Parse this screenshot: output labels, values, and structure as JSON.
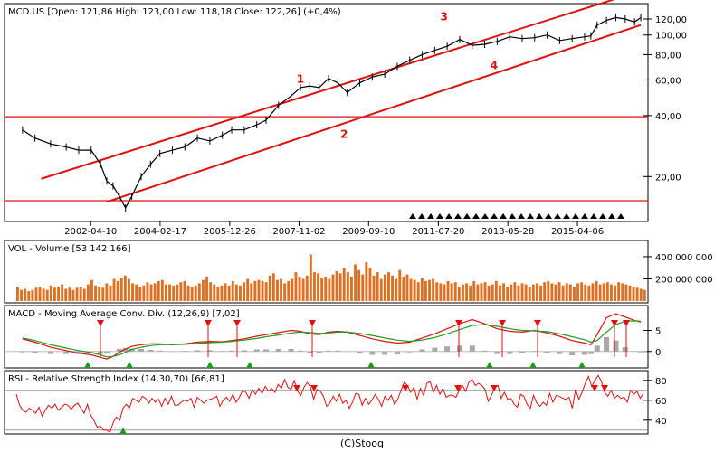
{
  "footer": "(C)Stooq",
  "colors": {
    "price": "#000000",
    "channel": "#dd1111",
    "volume": "#e07020",
    "macd": "#dd1111",
    "signal": "#229922",
    "hist": "#a8a8a8",
    "rsi": "#dd1111",
    "grid": "#999999"
  },
  "chart_data": [
    {
      "type": "line",
      "title": "MCD.US [Open: 121,86  High: 123,00  Low: 118,18  Close: 122,26] (+0,4%)",
      "x_ticks": [
        "2002-04-10",
        "2004-02-17",
        "2005-12-26",
        "2007-11-02",
        "2009-09-10",
        "2011-07-20",
        "2013-05-28",
        "2015-04-06"
      ],
      "y_scale": "log",
      "y_ticks": [
        "20,00",
        "40,00",
        "60,00",
        "80,00",
        "100,00",
        "120,00"
      ],
      "y_tick_values": [
        20,
        40,
        60,
        80,
        100,
        120
      ],
      "ylim": [
        14,
        140
      ],
      "x": [
        "2000-06",
        "2000-10",
        "2001-03",
        "2001-08",
        "2001-12",
        "2002-04",
        "2002-07",
        "2002-09",
        "2002-11",
        "2003-01",
        "2003-03",
        "2003-05",
        "2003-08",
        "2003-11",
        "2004-02",
        "2004-06",
        "2004-10",
        "2005-02",
        "2005-06",
        "2005-10",
        "2006-01",
        "2006-05",
        "2006-09",
        "2006-12",
        "2007-04",
        "2007-08",
        "2007-11",
        "2008-02",
        "2008-05",
        "2008-08",
        "2008-11",
        "2009-02",
        "2009-06",
        "2009-10",
        "2010-02",
        "2010-06",
        "2010-10",
        "2011-02",
        "2011-06",
        "2011-10",
        "2012-02",
        "2012-06",
        "2012-10",
        "2013-02",
        "2013-06",
        "2013-10",
        "2014-02",
        "2014-06",
        "2014-10",
        "2015-02",
        "2015-06",
        "2015-08",
        "2015-10",
        "2016-01",
        "2016-04",
        "2016-07",
        "2016-10",
        "2016-12"
      ],
      "close": [
        34,
        31,
        29,
        28,
        27,
        27,
        23,
        19,
        18,
        16,
        14,
        16,
        20,
        23,
        26,
        27,
        28,
        31,
        30,
        32,
        34,
        34,
        36,
        38,
        45,
        50,
        55,
        56,
        55,
        61,
        58,
        52,
        58,
        62,
        64,
        70,
        75,
        80,
        84,
        88,
        95,
        89,
        90,
        93,
        98,
        96,
        97,
        100,
        94,
        96,
        98,
        99,
        112,
        118,
        122,
        120,
        116,
        122
      ],
      "annotations": [
        "1",
        "2",
        "3",
        "4"
      ],
      "horizontal_lines": [
        39.5,
        15.2
      ],
      "channel_lines": [
        {
          "from": [
            "2000-12",
            19.5
          ],
          "to": [
            "2016-12",
            165
          ]
        },
        {
          "from": [
            "2002-09",
            15
          ],
          "to": [
            "2016-12",
            112
          ]
        }
      ]
    },
    {
      "type": "bar",
      "title": "VOL - Volume [53 142 166]",
      "y_ticks": [
        "200 000 000",
        "400 000 000"
      ],
      "y_tick_values": [
        200000000,
        400000000
      ],
      "ylim": [
        0,
        530000000
      ],
      "values": [
        130,
        100,
        110,
        90,
        100,
        120,
        130,
        110,
        100,
        140,
        120,
        130,
        150,
        110,
        120,
        100,
        120,
        130,
        110,
        150,
        190,
        140,
        130,
        120,
        160,
        140,
        200,
        180,
        210,
        230,
        200,
        160,
        150,
        130,
        140,
        170,
        150,
        160,
        180,
        190,
        150,
        150,
        140,
        150,
        170,
        180,
        140,
        130,
        140,
        160,
        190,
        220,
        170,
        150,
        130,
        140,
        160,
        140,
        180,
        150,
        140,
        170,
        200,
        160,
        180,
        190,
        180,
        170,
        230,
        250,
        190,
        200,
        160,
        180,
        200,
        260,
        220,
        200,
        230,
        420,
        260,
        250,
        210,
        220,
        200,
        240,
        270,
        250,
        300,
        260,
        220,
        330,
        280,
        240,
        350,
        300,
        230,
        260,
        200,
        240,
        260,
        230,
        200,
        280,
        220,
        240,
        200,
        190,
        170,
        210,
        180,
        190,
        200,
        170,
        160,
        150,
        180,
        160,
        170,
        130,
        150,
        160,
        140,
        180,
        150,
        160,
        170,
        140,
        150,
        180,
        140,
        160,
        130,
        150,
        170,
        140,
        160,
        150,
        130,
        150,
        160,
        140,
        170,
        180,
        160,
        150,
        170,
        140,
        160,
        150,
        130,
        160,
        170,
        150,
        140,
        160,
        180,
        150,
        160,
        170,
        150,
        140,
        170,
        160,
        150,
        140,
        130,
        120,
        110,
        100
      ],
      "values_unit": "million shares"
    },
    {
      "type": "line",
      "title": "MACD - Moving Average Conv. Div. (12,26,9) [7,02]",
      "y_ticks": [
        "0",
        "5"
      ],
      "y_tick_values": [
        0,
        5
      ],
      "ylim": [
        -3.5,
        10.5
      ],
      "series": [
        {
          "values": [
            3,
            2.2,
            1.0,
            0.2,
            -0.4,
            -0.8,
            -1.4,
            -1.8,
            -1.2,
            -0.2,
            0.6,
            1.2,
            1.6,
            1.8,
            1.8,
            1.6,
            1.8,
            2.2,
            2.4,
            2.3,
            2.6,
            3.0,
            3.6,
            4.0,
            4.5,
            5.0,
            4.8,
            4.2,
            4.0,
            4.6,
            4.8,
            4.6,
            3.8,
            3.0,
            2.4,
            2.0,
            2.2,
            3.2,
            4.2,
            5.4,
            6.6,
            7.6,
            6.6,
            5.4,
            4.8,
            4.6,
            5.0,
            4.4,
            3.6,
            2.6,
            2.0,
            1.6,
            4.0,
            8.0,
            9.0,
            8.2,
            7.4,
            7.0
          ]
        },
        {
          "values": [
            3.2,
            2.6,
            1.6,
            0.8,
            0.2,
            -0.3,
            -0.8,
            -1.3,
            -1.2,
            -0.8,
            -0.2,
            0.5,
            1.0,
            1.4,
            1.6,
            1.6,
            1.7,
            1.9,
            2.1,
            2.2,
            2.4,
            2.7,
            3.1,
            3.5,
            3.9,
            4.4,
            4.6,
            4.5,
            4.3,
            4.4,
            4.6,
            4.6,
            4.3,
            3.8,
            3.2,
            2.7,
            2.4,
            2.7,
            3.3,
            4.2,
            5.2,
            6.2,
            6.4,
            6.0,
            5.4,
            5.0,
            4.9,
            4.7,
            4.2,
            3.5,
            2.8,
            2.2,
            2.6,
            4.6,
            6.4,
            7.2,
            7.3,
            7.2
          ]
        },
        {
          "values": [
            -0.2,
            -0.4,
            -0.6,
            -0.6,
            -0.6,
            -0.5,
            -0.6,
            -0.5,
            0.0,
            0.6,
            0.8,
            0.7,
            0.6,
            0.4,
            0.2,
            0.0,
            0.1,
            0.3,
            0.3,
            0.1,
            0.2,
            0.3,
            0.5,
            0.5,
            0.6,
            0.6,
            0.2,
            -0.3,
            -0.3,
            0.2,
            0.2,
            0.0,
            -0.5,
            -0.8,
            -0.8,
            -0.7,
            -0.2,
            0.5,
            0.9,
            1.2,
            1.4,
            1.4,
            0.2,
            -0.6,
            -0.6,
            -0.4,
            0.1,
            -0.3,
            -0.6,
            -0.9,
            -0.8,
            -0.6,
            1.4,
            3.4,
            2.6,
            1.0,
            0.1,
            -0.2
          ]
        }
      ]
    },
    {
      "type": "line",
      "title": "RSI - Relative Strength Index (14,30,70) [66,81]",
      "y_ticks": [
        "40",
        "60",
        "80"
      ],
      "y_tick_values": [
        40,
        60,
        80
      ],
      "ylim": [
        28,
        88
      ],
      "reference_lines": [
        30,
        70
      ],
      "values": [
        66,
        55,
        50,
        48,
        52,
        50,
        47,
        53,
        44,
        50,
        55,
        52,
        56,
        50,
        53,
        56,
        55,
        51,
        55,
        57,
        52,
        47,
        56,
        45,
        40,
        33,
        34,
        30,
        30,
        28,
        38,
        43,
        40,
        52,
        56,
        52,
        62,
        60,
        58,
        64,
        62,
        57,
        62,
        58,
        61,
        54,
        62,
        56,
        64,
        55,
        55,
        58,
        60,
        59,
        62,
        53,
        63,
        60,
        57,
        60,
        61,
        62,
        64,
        54,
        60,
        63,
        59,
        66,
        58,
        63,
        70,
        68,
        62,
        71,
        66,
        72,
        67,
        74,
        69,
        72,
        68,
        76,
        72,
        81,
        73,
        71,
        80,
        69,
        65,
        73,
        78,
        73,
        61,
        71,
        69,
        64,
        54,
        57,
        64,
        59,
        66,
        57,
        60,
        52,
        58,
        67,
        66,
        55,
        62,
        56,
        60,
        66,
        61,
        54,
        64,
        60,
        65,
        56,
        61,
        70,
        78,
        75,
        68,
        73,
        61,
        72,
        65,
        77,
        79,
        68,
        75,
        66,
        72,
        63,
        65,
        65,
        63,
        70,
        75,
        69,
        78,
        81,
        75,
        77,
        75,
        71,
        59,
        65,
        73,
        75,
        62,
        68,
        61,
        62,
        56,
        53,
        66,
        64,
        56,
        52,
        65,
        57,
        54,
        58,
        55,
        67,
        58,
        65,
        64,
        62,
        61,
        63,
        52,
        71,
        61,
        68,
        77,
        84,
        74,
        80,
        85,
        79,
        68,
        64,
        70,
        62,
        65,
        62,
        63,
        58,
        70,
        66,
        69,
        62,
        67
      ]
    }
  ]
}
